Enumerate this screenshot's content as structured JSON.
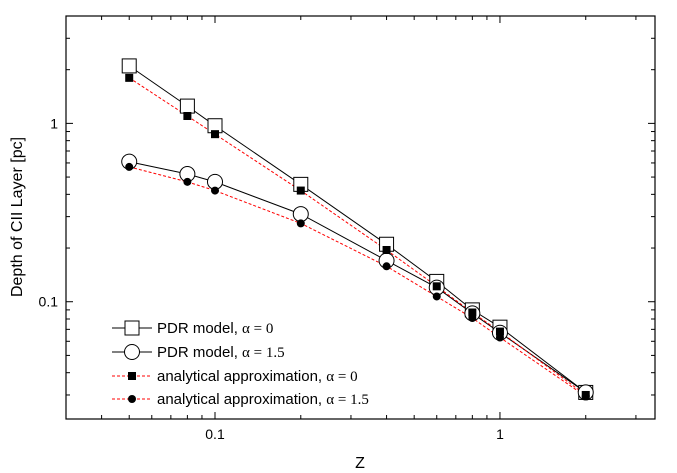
{
  "chart_data": {
    "type": "line",
    "xlabel": "Z",
    "ylabel": "Depth of CII Layer [pc]",
    "xscale": "log",
    "yscale": "log",
    "xlim": [
      0.03,
      3.5
    ],
    "ylim": [
      0.022,
      4.0
    ],
    "xticks": [
      {
        "value": 0.1,
        "label": "0.1"
      },
      {
        "value": 1,
        "label": "1"
      }
    ],
    "yticks": [
      {
        "value": 0.1,
        "label": "0.1"
      },
      {
        "value": 1,
        "label": "1"
      }
    ],
    "grid": false,
    "legend_position": "bottom-left",
    "series": [
      {
        "name": "PDR model, ",
        "alpha_text": "α = 0",
        "marker": "open-square",
        "line_color": "#000000",
        "line_style": "solid",
        "x": [
          0.05,
          0.08,
          0.1,
          0.2,
          0.4,
          0.6,
          0.8,
          1.0,
          2.0
        ],
        "values": [
          2.1,
          1.25,
          0.97,
          0.455,
          0.21,
          0.13,
          0.09,
          0.072,
          0.031
        ]
      },
      {
        "name": "PDR model,  ",
        "alpha_text": "α = 1.5",
        "marker": "open-circle",
        "line_color": "#000000",
        "line_style": "solid",
        "x": [
          0.05,
          0.08,
          0.1,
          0.2,
          0.4,
          0.6,
          0.8,
          1.0,
          2.0
        ],
        "values": [
          0.61,
          0.52,
          0.47,
          0.31,
          0.17,
          0.12,
          0.086,
          0.067,
          0.031
        ]
      },
      {
        "name": "analytical approximation, ",
        "alpha_text": "α = 0",
        "marker": "filled-square",
        "line_color": "#ff0000",
        "line_style": "dashed",
        "x": [
          0.05,
          0.08,
          0.1,
          0.2,
          0.4,
          0.6,
          0.8,
          1.0,
          2.0
        ],
        "values": [
          1.8,
          1.1,
          0.87,
          0.42,
          0.195,
          0.122,
          0.087,
          0.068,
          0.03
        ]
      },
      {
        "name": "analytical approximation, ",
        "alpha_text": "α = 1.5",
        "marker": "filled-circle",
        "line_color": "#ff0000",
        "line_style": "dashed",
        "x": [
          0.05,
          0.08,
          0.1,
          0.2,
          0.4,
          0.6,
          0.8,
          1.0,
          2.0
        ],
        "values": [
          0.57,
          0.47,
          0.42,
          0.275,
          0.158,
          0.107,
          0.081,
          0.063,
          0.0295
        ]
      }
    ]
  }
}
